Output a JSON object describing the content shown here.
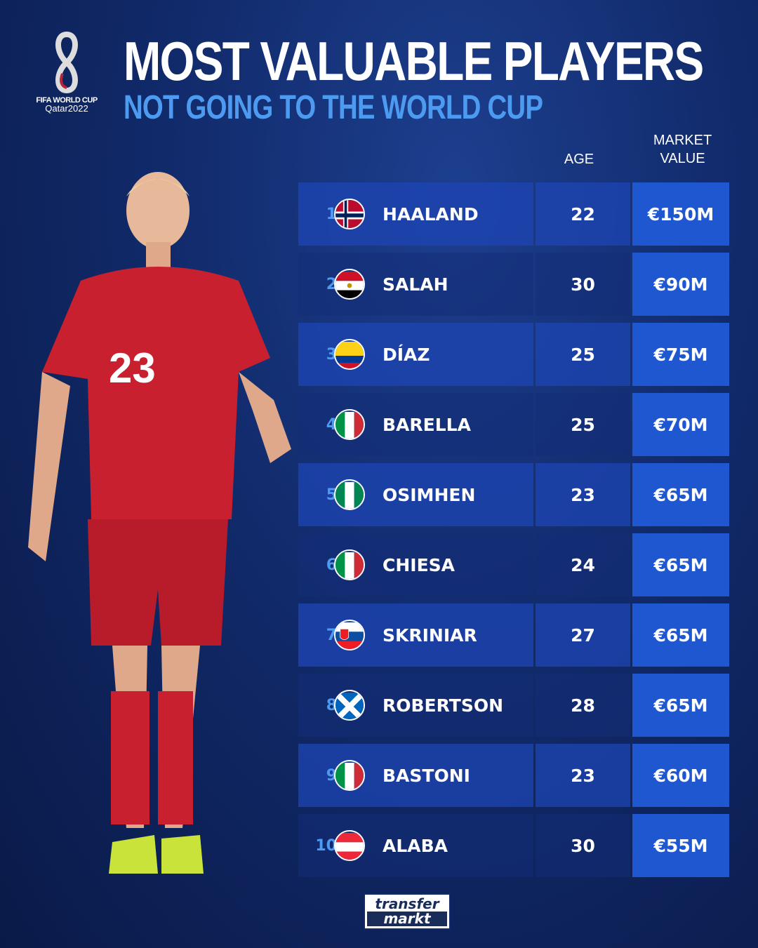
{
  "logo": {
    "line1": "FIFA WORLD CUP",
    "line2": "Qatar2022"
  },
  "header": {
    "title": "MOST VALUABLE PLAYERS",
    "subtitle": "NOT GOING TO THE WORLD CUP"
  },
  "columns": {
    "age": "AGE",
    "market_value_line1": "MARKET",
    "market_value_line2": "VALUE"
  },
  "players": [
    {
      "rank": "1",
      "name": "HAALAND",
      "flag": "norway",
      "age": "22",
      "value": "€150M"
    },
    {
      "rank": "2",
      "name": "SALAH",
      "flag": "egypt",
      "age": "30",
      "value": "€90M"
    },
    {
      "rank": "3",
      "name": "DÍAZ",
      "flag": "colombia",
      "age": "25",
      "value": "€75M"
    },
    {
      "rank": "4",
      "name": "BARELLA",
      "flag": "italy",
      "age": "25",
      "value": "€70M"
    },
    {
      "rank": "5",
      "name": "OSIMHEN",
      "flag": "nigeria",
      "age": "23",
      "value": "€65M"
    },
    {
      "rank": "6",
      "name": "CHIESA",
      "flag": "italy",
      "age": "24",
      "value": "€65M"
    },
    {
      "rank": "7",
      "name": "SKRINIAR",
      "flag": "slovakia",
      "age": "27",
      "value": "€65M"
    },
    {
      "rank": "8",
      "name": "ROBERTSON",
      "flag": "scotland",
      "age": "28",
      "value": "€65M"
    },
    {
      "rank": "9",
      "name": "BASTONI",
      "flag": "italy",
      "age": "23",
      "value": "€60M"
    },
    {
      "rank": "10",
      "name": "ALABA",
      "flag": "austria",
      "age": "30",
      "value": "€55M"
    }
  ],
  "footer": {
    "brand_line1": "transfer",
    "brand_line2": "markt"
  },
  "colors": {
    "accent": "#4d9bf0",
    "value_cell": "#1f57d0",
    "background": "#112a6a"
  }
}
